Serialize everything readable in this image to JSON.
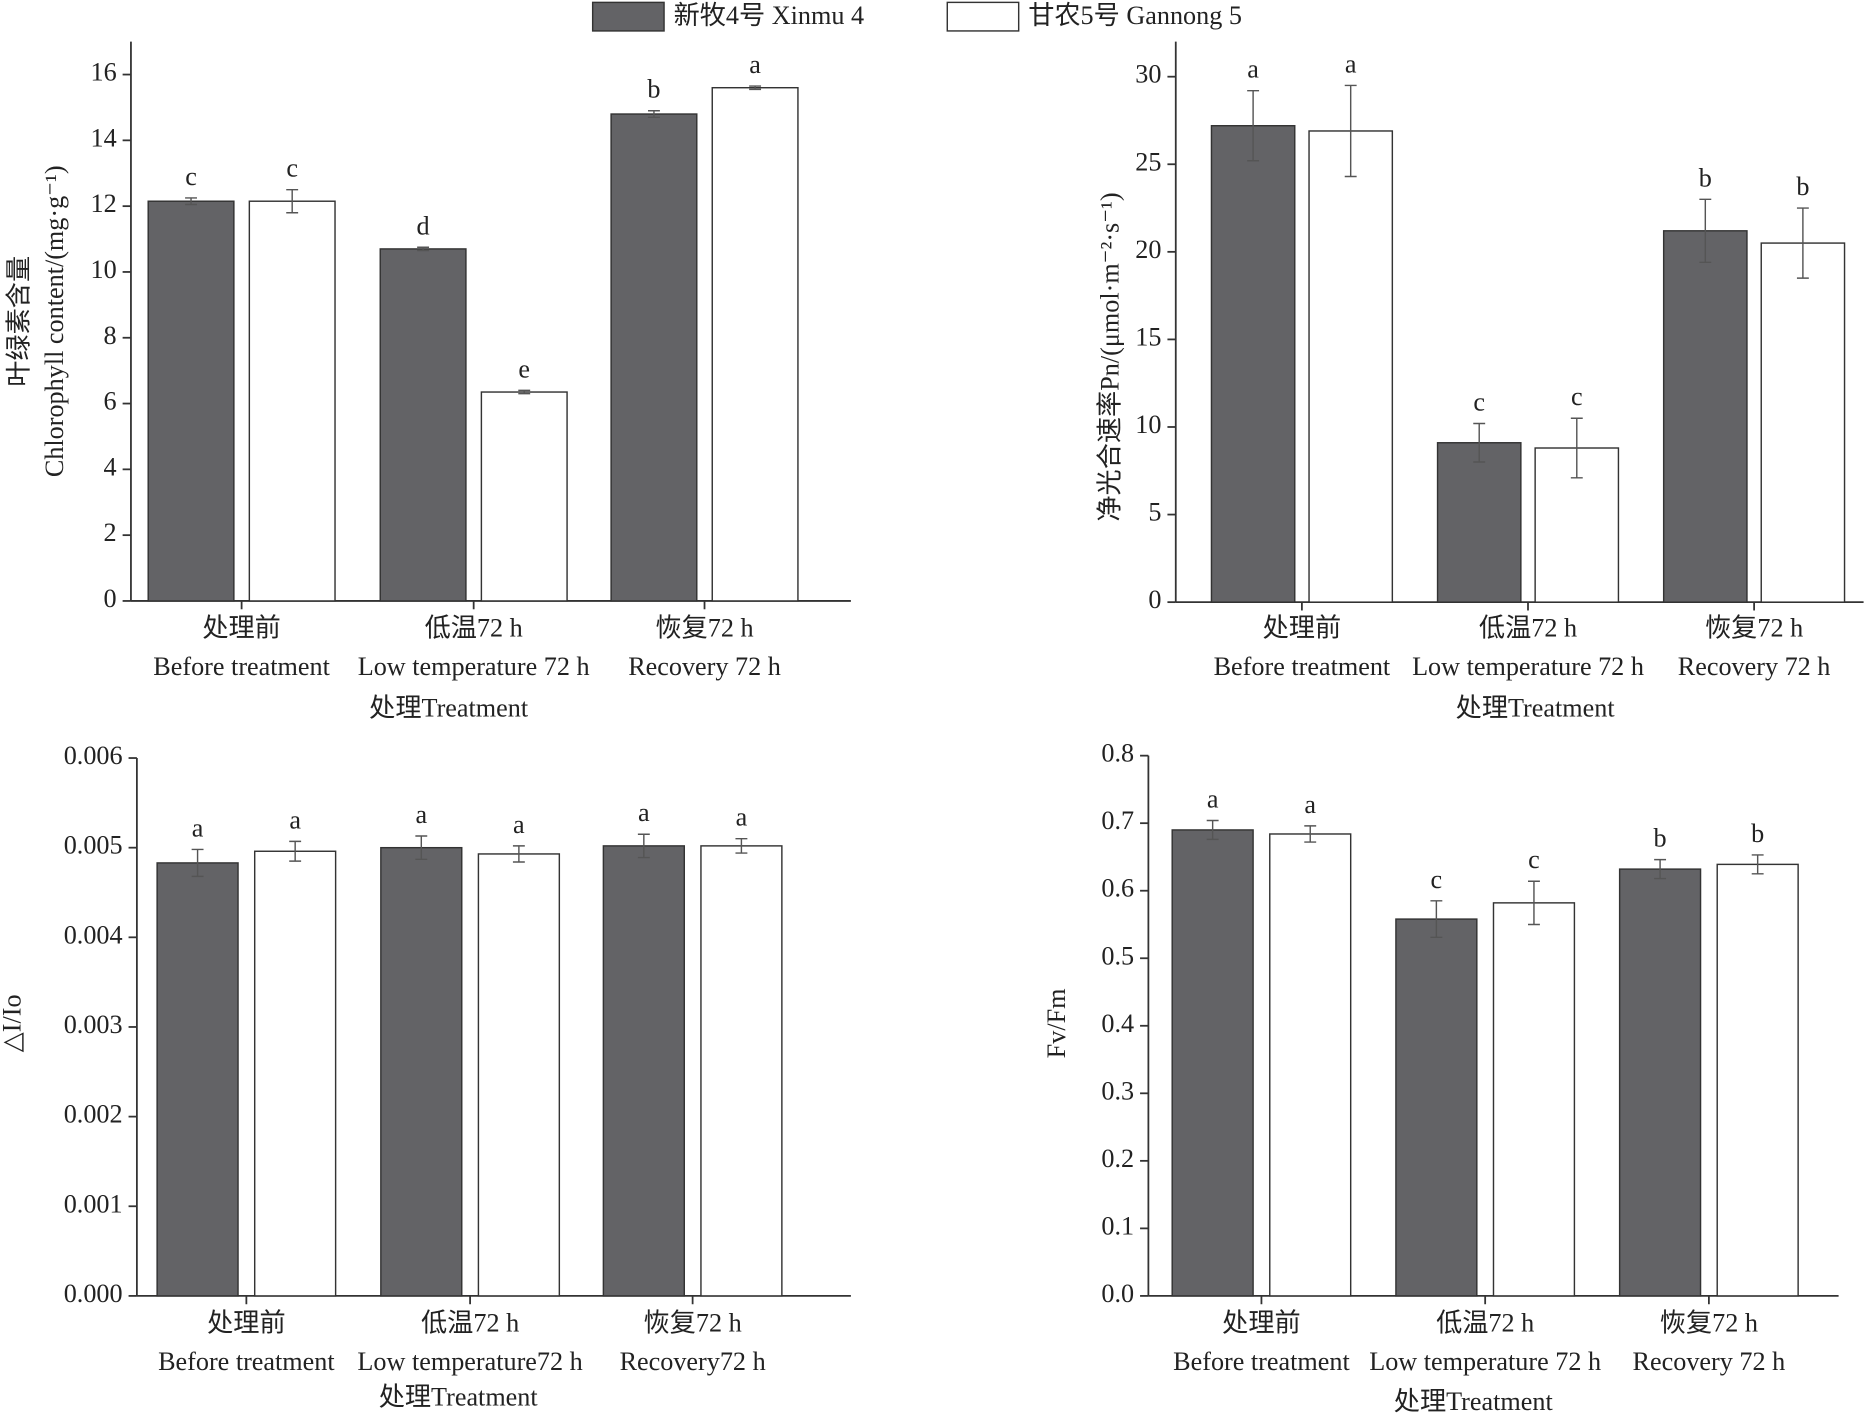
{
  "chart_data": [
    {
      "type": "bar",
      "y_label": [
        "叶绿素含量",
        "Chlorophyll content/(mg·g⁻¹)"
      ],
      "x_label": "处理Treatment",
      "categories": [
        "处理前",
        "低温72 h",
        "恢复72 h"
      ],
      "categories_en": [
        "Before treatment",
        "Low temperature 72 h",
        "Recovery 72 h"
      ],
      "ylim": [
        0,
        17
      ],
      "yticks": [
        0,
        2,
        4,
        6,
        8,
        10,
        12,
        14,
        16
      ],
      "series": [
        {
          "name": "新牧4号 Xinmu 4",
          "color": "#636366",
          "values": [
            12.15,
            10.7,
            14.8
          ],
          "errors": [
            0.1,
            0.05,
            0.1
          ],
          "letters": [
            "c",
            "d",
            "b"
          ]
        },
        {
          "name": "甘农5号 Gannong 5",
          "color": "#ffffff",
          "values": [
            12.15,
            6.35,
            15.6
          ],
          "errors": [
            0.35,
            0.05,
            0.05
          ],
          "letters": [
            "c",
            "e",
            "a"
          ]
        }
      ]
    },
    {
      "type": "bar",
      "y_label": [
        "净光合速率Pn/(μmol·m⁻²·s⁻¹)"
      ],
      "x_label": "处理Treatment",
      "categories": [
        "处理前",
        "低温72 h",
        "恢复72 h"
      ],
      "categories_en": [
        "Before treatment",
        "Low temperature 72 h",
        "Recovery 72 h"
      ],
      "ylim": [
        0,
        32
      ],
      "yticks": [
        0,
        5,
        10,
        15,
        20,
        25,
        30
      ],
      "series": [
        {
          "color": "#636366",
          "values": [
            27.2,
            9.1,
            21.2
          ],
          "errors": [
            2.0,
            1.1,
            1.8
          ],
          "letters": [
            "a",
            "c",
            "b"
          ]
        },
        {
          "color": "#ffffff",
          "values": [
            26.9,
            8.8,
            20.5
          ],
          "errors": [
            2.6,
            1.7,
            2.0
          ],
          "letters": [
            "a",
            "c",
            "b"
          ]
        }
      ]
    },
    {
      "type": "bar",
      "y_label": [
        "△I/Io"
      ],
      "x_label": "处理Treatment",
      "categories": [
        "处理前",
        "低温72 h",
        "恢复72 h"
      ],
      "categories_en": [
        "Before treatment",
        "Low temperature72 h",
        "Recovery72 h"
      ],
      "ylim": [
        0,
        0.006
      ],
      "yticks": [
        {
          "value": 0,
          "label": "0.000"
        },
        0.001,
        0.002,
        0.003,
        0.004,
        0.005,
        0.006
      ],
      "series": [
        {
          "color": "#636366",
          "values": [
            0.00483,
            0.005,
            0.00502
          ],
          "errors": [
            0.00015,
            0.00013,
            0.00013
          ],
          "letters": [
            "a",
            "a",
            "a"
          ]
        },
        {
          "color": "#ffffff",
          "values": [
            0.00496,
            0.00493,
            0.00502
          ],
          "errors": [
            0.00011,
            9e-05,
            8e-05
          ],
          "letters": [
            "a",
            "a",
            "a"
          ]
        }
      ]
    },
    {
      "type": "bar",
      "y_label": [
        "Fv/Fm"
      ],
      "x_label": "处理Treatment",
      "categories": [
        "处理前",
        "低温72 h",
        "恢复72 h"
      ],
      "categories_en": [
        "Before treatment",
        "Low temperature 72 h",
        "Recovery 72 h"
      ],
      "ylim": [
        0,
        0.8
      ],
      "yticks": [
        {
          "value": 0,
          "label": "0.0"
        },
        0.1,
        0.2,
        0.3,
        0.4,
        0.5,
        0.6,
        0.7,
        0.8
      ],
      "series": [
        {
          "color": "#636366",
          "values": [
            0.69,
            0.558,
            0.632
          ],
          "errors": [
            0.014,
            0.027,
            0.014
          ],
          "letters": [
            "a",
            "c",
            "b"
          ]
        },
        {
          "color": "#ffffff",
          "values": [
            0.684,
            0.582,
            0.639
          ],
          "errors": [
            0.012,
            0.032,
            0.014
          ],
          "letters": [
            "a",
            "c",
            "b"
          ]
        }
      ]
    }
  ]
}
